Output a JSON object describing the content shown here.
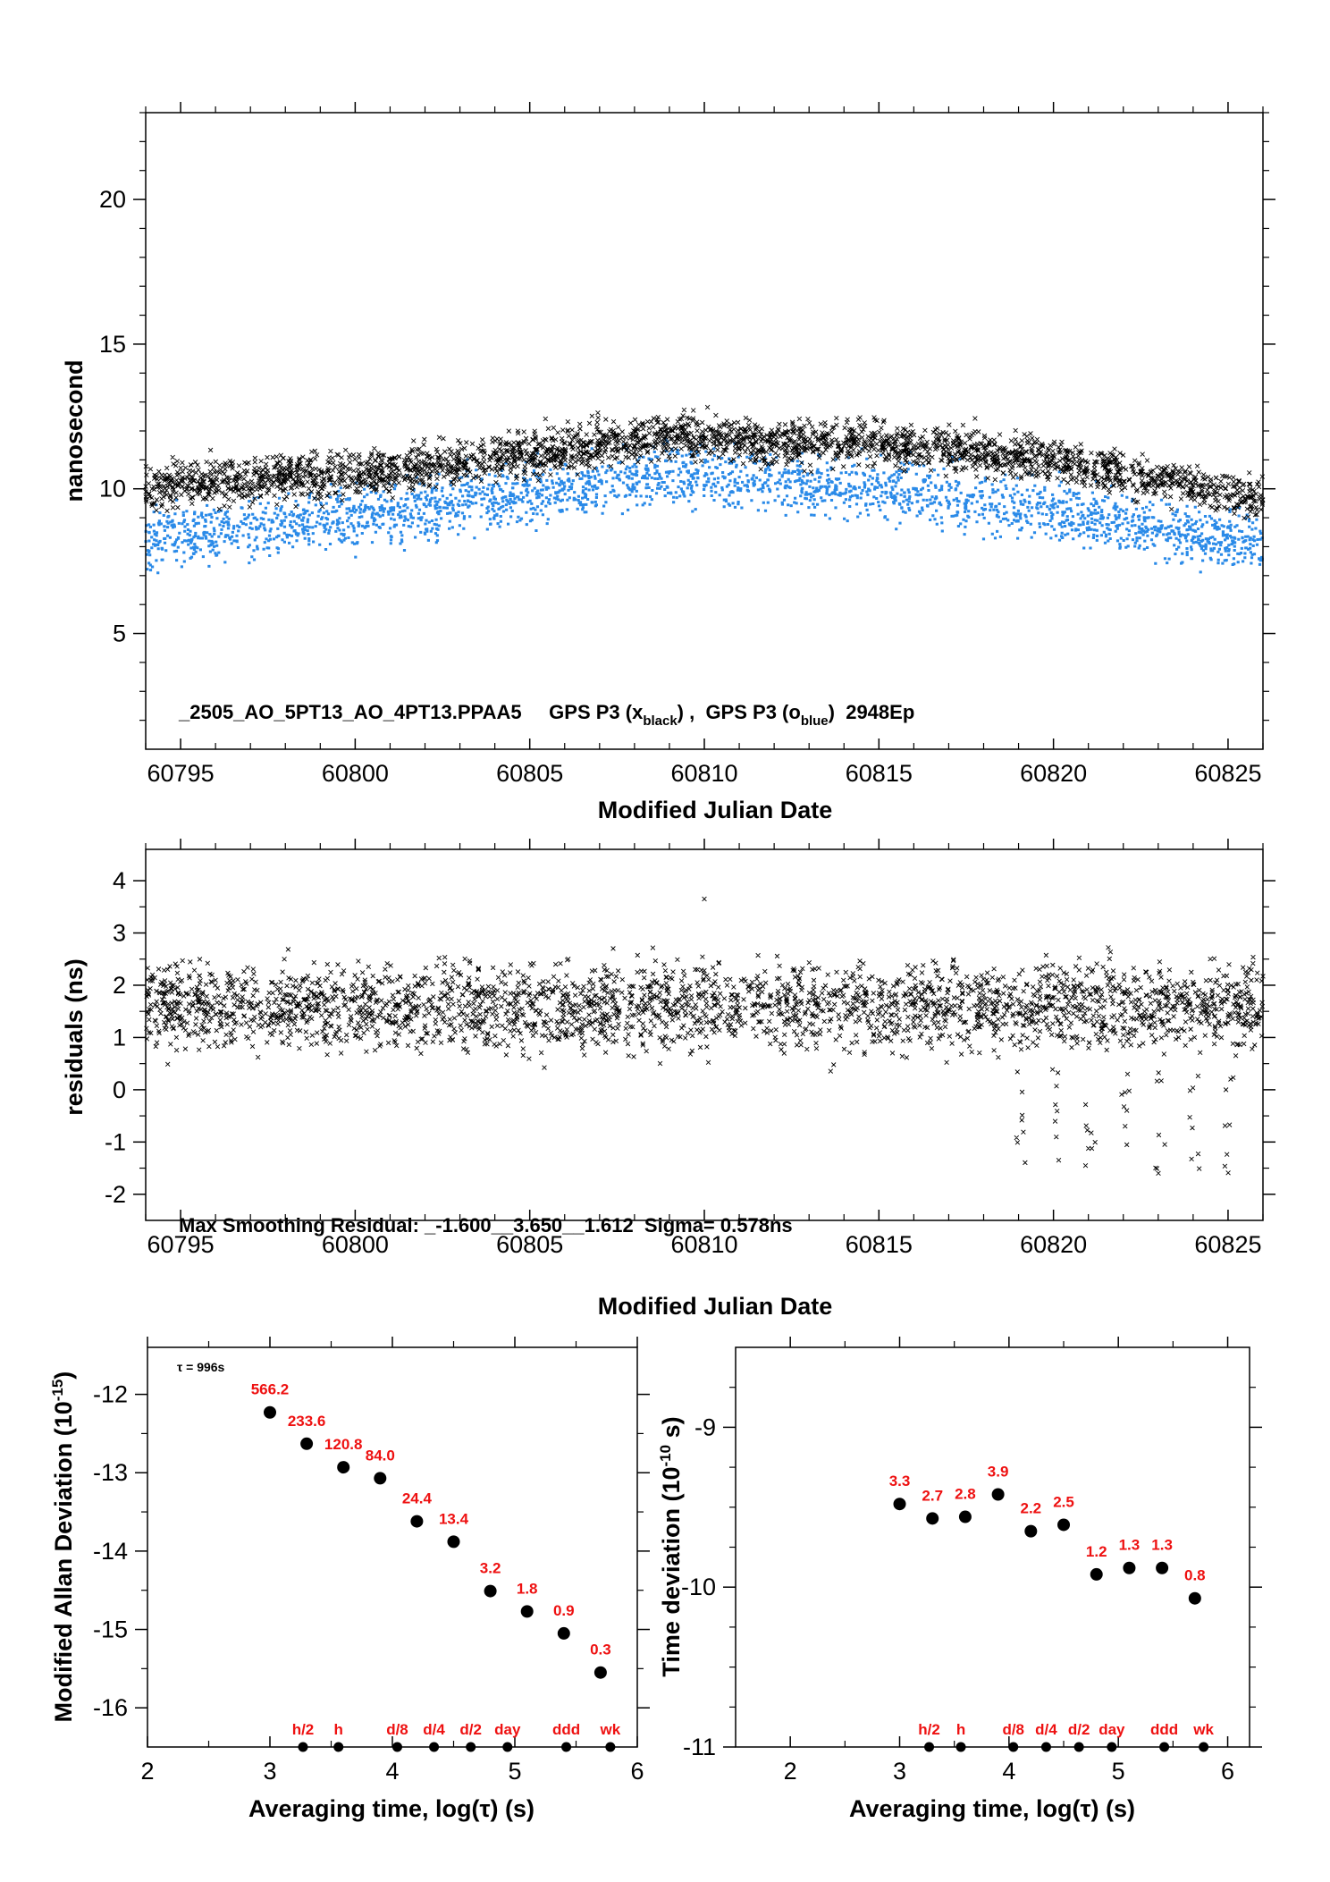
{
  "chart_data": [
    {
      "type": "scatter",
      "xlabel": "Modified Julian Date",
      "ylabel": "nanosecond",
      "xlim": [
        60794,
        60826
      ],
      "ylim": [
        1,
        23
      ],
      "xticks": [
        60795,
        60800,
        60805,
        60810,
        60815,
        60820,
        60825
      ],
      "yticks": [
        5,
        10,
        15,
        20
      ],
      "annotation": "_2505_AO_5PT13_AO_4PT13.PPAA5     GPS P3 (x",
      "annotation_sub1": "black",
      "annotation_mid": ") ,  GPS P3 (o",
      "annotation_sub2": "blue",
      "annotation_end": ")  2948Ep",
      "series": [
        {
          "marker": "x",
          "color": "#000000",
          "mean_trend": [
            [
              60794,
              10.1
            ],
            [
              60800,
              10.5
            ],
            [
              60805,
              11.2
            ],
            [
              60809,
              11.9
            ],
            [
              60812,
              11.6
            ],
            [
              60815,
              11.6
            ],
            [
              60820,
              11.0
            ],
            [
              60826,
              9.6
            ]
          ],
          "spread": 1.2
        },
        {
          "marker": "o",
          "color": "#2a8ae8",
          "mean_trend": [
            [
              60794,
              8.3
            ],
            [
              60800,
              9.0
            ],
            [
              60805,
              9.9
            ],
            [
              60809,
              10.5
            ],
            [
              60812,
              10.3
            ],
            [
              60815,
              10.0
            ],
            [
              60820,
              9.3
            ],
            [
              60826,
              8.1
            ]
          ],
          "spread": 1.3
        }
      ]
    },
    {
      "type": "scatter",
      "xlabel": "Modified Julian Date",
      "ylabel": "residuals (ns)",
      "xlim": [
        60794,
        60826
      ],
      "ylim": [
        -2.5,
        4.6
      ],
      "xticks": [
        60795,
        60800,
        60805,
        60810,
        60815,
        60820,
        60825
      ],
      "yticks": [
        -2,
        -1,
        0,
        1,
        2,
        3,
        4
      ],
      "annotation": "Max Smoothing Residual: _-1.600__3.650__1.612  Sigma= 0.578ns",
      "series": [
        {
          "marker": "x",
          "color": "#000000",
          "center": 1.6,
          "spread": 0.58,
          "max": 3.65,
          "min": -1.6
        }
      ]
    },
    {
      "type": "scatter",
      "xlabel": "Averaging time, log(τ) (s)",
      "ylabel": "Modified Allan Deviation (10",
      "ylabel_sup": "-15",
      "ylabel_end": ")",
      "xlim": [
        2,
        6
      ],
      "ylim": [
        -16.5,
        -11.4
      ],
      "xticks": [
        2,
        3,
        4,
        5,
        6
      ],
      "yticks": [
        -12,
        -13,
        -14,
        -15,
        -16
      ],
      "tau_note": "τ = 996s",
      "x": [
        3.0,
        3.3,
        3.6,
        3.9,
        4.2,
        4.5,
        4.8,
        5.1,
        5.4,
        5.7
      ],
      "y": [
        -12.23,
        -12.63,
        -12.93,
        -13.07,
        -13.62,
        -13.88,
        -14.51,
        -14.77,
        -15.05,
        -15.55
      ],
      "labels": [
        "566.2",
        "233.6",
        "120.8",
        "84.0",
        "24.4",
        "13.4",
        "3.2",
        "1.8",
        "0.9",
        "0.3"
      ],
      "markers": [
        {
          "x": 3.27,
          "label": "h/2"
        },
        {
          "x": 3.56,
          "label": "h"
        },
        {
          "x": 4.04,
          "label": "d/8"
        },
        {
          "x": 4.34,
          "label": "d/4"
        },
        {
          "x": 4.64,
          "label": "d/2"
        },
        {
          "x": 4.94,
          "label": "day"
        },
        {
          "x": 5.42,
          "label": "ddd"
        },
        {
          "x": 5.78,
          "label": "wk"
        }
      ]
    },
    {
      "type": "scatter",
      "xlabel": "Averaging time, log(τ) (s)",
      "ylabel": "Time deviation (10",
      "ylabel_sup": "-10",
      "ylabel_end": " s)",
      "xlim": [
        1.5,
        6.2
      ],
      "ylim": [
        -11.0,
        -8.5
      ],
      "xticks": [
        2,
        3,
        4,
        5,
        6
      ],
      "yticks": [
        -9,
        -10,
        -11
      ],
      "x": [
        3.0,
        3.3,
        3.6,
        3.9,
        4.2,
        4.5,
        4.8,
        5.1,
        5.4,
        5.7
      ],
      "y": [
        -9.48,
        -9.57,
        -9.56,
        -9.42,
        -9.65,
        -9.61,
        -9.92,
        -9.88,
        -9.88,
        -10.07
      ],
      "labels": [
        "3.3",
        "2.7",
        "2.8",
        "3.9",
        "2.2",
        "2.5",
        "1.2",
        "1.3",
        "1.3",
        "0.8"
      ],
      "markers": [
        {
          "x": 3.27,
          "label": "h/2"
        },
        {
          "x": 3.56,
          "label": "h"
        },
        {
          "x": 4.04,
          "label": "d/8"
        },
        {
          "x": 4.34,
          "label": "d/4"
        },
        {
          "x": 4.64,
          "label": "d/2"
        },
        {
          "x": 4.94,
          "label": "day"
        },
        {
          "x": 5.42,
          "label": "ddd"
        },
        {
          "x": 5.78,
          "label": "wk"
        }
      ]
    }
  ]
}
